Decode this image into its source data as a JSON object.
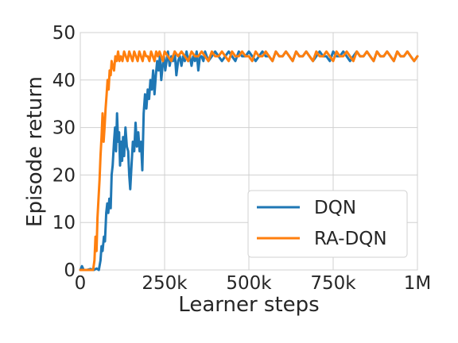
{
  "chart_data": {
    "type": "line",
    "xlabel": "Learner steps",
    "ylabel": "Episode return",
    "xlim": [
      0,
      1000000
    ],
    "ylim": [
      0,
      50
    ],
    "grid": true,
    "legend_position": "lower-right",
    "x_ticks": [
      {
        "value": 0,
        "label": "0"
      },
      {
        "value": 250000,
        "label": "250k"
      },
      {
        "value": 500000,
        "label": "500k"
      },
      {
        "value": 750000,
        "label": "750k"
      },
      {
        "value": 1000000,
        "label": "1M"
      }
    ],
    "y_ticks": [
      {
        "value": 0,
        "label": "0"
      },
      {
        "value": 10,
        "label": "10"
      },
      {
        "value": 20,
        "label": "20"
      },
      {
        "value": 30,
        "label": "30"
      },
      {
        "value": 40,
        "label": "40"
      },
      {
        "value": 50,
        "label": "50"
      }
    ],
    "series": [
      {
        "name": "DQN",
        "color": "#1f77b4",
        "points": [
          [
            0,
            0
          ],
          [
            5000,
            0.8
          ],
          [
            10000,
            0
          ],
          [
            20000,
            0
          ],
          [
            30000,
            0.2
          ],
          [
            40000,
            0
          ],
          [
            48000,
            0.3
          ],
          [
            55000,
            0
          ],
          [
            60000,
            2
          ],
          [
            63000,
            5
          ],
          [
            66000,
            4
          ],
          [
            70000,
            7
          ],
          [
            73000,
            6
          ],
          [
            77000,
            12
          ],
          [
            80000,
            14
          ],
          [
            83000,
            12
          ],
          [
            86000,
            15
          ],
          [
            90000,
            13
          ],
          [
            93000,
            20
          ],
          [
            96000,
            22
          ],
          [
            100000,
            27
          ],
          [
            103000,
            30
          ],
          [
            106000,
            25
          ],
          [
            109000,
            33
          ],
          [
            112000,
            27
          ],
          [
            115000,
            29
          ],
          [
            118000,
            22
          ],
          [
            121000,
            27
          ],
          [
            124000,
            23
          ],
          [
            127000,
            28
          ],
          [
            130000,
            24
          ],
          [
            134000,
            30
          ],
          [
            138000,
            26
          ],
          [
            142000,
            25
          ],
          [
            145000,
            20
          ],
          [
            148000,
            17
          ],
          [
            152000,
            22
          ],
          [
            156000,
            27
          ],
          [
            160000,
            25
          ],
          [
            164000,
            31
          ],
          [
            168000,
            26
          ],
          [
            172000,
            29
          ],
          [
            176000,
            25
          ],
          [
            180000,
            27
          ],
          [
            184000,
            21
          ],
          [
            188000,
            33
          ],
          [
            192000,
            37
          ],
          [
            196000,
            34
          ],
          [
            200000,
            38
          ],
          [
            204000,
            36
          ],
          [
            208000,
            40
          ],
          [
            212000,
            38
          ],
          [
            216000,
            42
          ],
          [
            220000,
            37
          ],
          [
            224000,
            41
          ],
          [
            228000,
            44
          ],
          [
            232000,
            42
          ],
          [
            236000,
            45
          ],
          [
            240000,
            40
          ],
          [
            244000,
            43
          ],
          [
            248000,
            45
          ],
          [
            252000,
            42
          ],
          [
            256000,
            44
          ],
          [
            260000,
            46
          ],
          [
            265000,
            43
          ],
          [
            270000,
            45
          ],
          [
            275000,
            44
          ],
          [
            280000,
            46
          ],
          [
            285000,
            41
          ],
          [
            290000,
            44
          ],
          [
            295000,
            45
          ],
          [
            300000,
            43
          ],
          [
            305000,
            45
          ],
          [
            310000,
            44
          ],
          [
            315000,
            46
          ],
          [
            320000,
            44
          ],
          [
            325000,
            45
          ],
          [
            330000,
            43
          ],
          [
            335000,
            45
          ],
          [
            340000,
            44
          ],
          [
            345000,
            46
          ],
          [
            350000,
            42
          ],
          [
            355000,
            45
          ],
          [
            360000,
            45
          ],
          [
            365000,
            44
          ],
          [
            370000,
            46
          ],
          [
            375000,
            45
          ],
          [
            380000,
            44
          ],
          [
            390000,
            45
          ],
          [
            400000,
            46
          ],
          [
            410000,
            45
          ],
          [
            420000,
            44
          ],
          [
            430000,
            45
          ],
          [
            440000,
            46
          ],
          [
            450000,
            45
          ],
          [
            460000,
            44
          ],
          [
            470000,
            46
          ],
          [
            480000,
            45
          ],
          [
            490000,
            45
          ],
          [
            500000,
            46
          ],
          [
            510000,
            45
          ],
          [
            520000,
            44
          ],
          [
            530000,
            45
          ],
          [
            540000,
            46
          ],
          [
            550000,
            45
          ],
          [
            560000,
            45
          ],
          [
            570000,
            44
          ],
          [
            580000,
            46
          ],
          [
            590000,
            45
          ],
          [
            600000,
            45
          ],
          [
            610000,
            46
          ],
          [
            620000,
            45
          ],
          [
            630000,
            44
          ],
          [
            640000,
            46
          ],
          [
            650000,
            45
          ],
          [
            660000,
            45
          ],
          [
            670000,
            46
          ],
          [
            680000,
            45
          ],
          [
            690000,
            44
          ],
          [
            700000,
            45
          ],
          [
            710000,
            46
          ],
          [
            720000,
            45
          ],
          [
            730000,
            45
          ],
          [
            740000,
            44
          ],
          [
            750000,
            46
          ],
          [
            760000,
            45
          ],
          [
            770000,
            45
          ],
          [
            780000,
            46
          ],
          [
            790000,
            45
          ],
          [
            800000,
            44
          ],
          [
            810000,
            45
          ],
          [
            820000,
            46
          ],
          [
            830000,
            45
          ],
          [
            840000,
            45
          ],
          [
            850000,
            46
          ],
          [
            860000,
            45
          ],
          [
            870000,
            44
          ],
          [
            880000,
            46
          ],
          [
            890000,
            45
          ],
          [
            900000,
            45
          ],
          [
            910000,
            46
          ],
          [
            920000,
            45
          ],
          [
            930000,
            44
          ],
          [
            940000,
            46
          ],
          [
            950000,
            45
          ],
          [
            960000,
            45
          ],
          [
            970000,
            46
          ],
          [
            980000,
            45
          ],
          [
            990000,
            44
          ],
          [
            1000000,
            45
          ]
        ]
      },
      {
        "name": "RA-DQN",
        "color": "#ff7f0e",
        "points": [
          [
            0,
            0
          ],
          [
            10000,
            0
          ],
          [
            20000,
            0
          ],
          [
            30000,
            0
          ],
          [
            38000,
            0
          ],
          [
            42000,
            2
          ],
          [
            45000,
            7
          ],
          [
            48000,
            4
          ],
          [
            51000,
            11
          ],
          [
            54000,
            15
          ],
          [
            57000,
            19
          ],
          [
            60000,
            24
          ],
          [
            63000,
            28
          ],
          [
            66000,
            33
          ],
          [
            69000,
            27
          ],
          [
            72000,
            30
          ],
          [
            75000,
            34
          ],
          [
            78000,
            37
          ],
          [
            81000,
            40
          ],
          [
            84000,
            38
          ],
          [
            87000,
            42
          ],
          [
            90000,
            41
          ],
          [
            93000,
            44
          ],
          [
            96000,
            43
          ],
          [
            100000,
            42
          ],
          [
            104000,
            45
          ],
          [
            108000,
            44
          ],
          [
            112000,
            46
          ],
          [
            116000,
            44
          ],
          [
            120000,
            45
          ],
          [
            125000,
            44
          ],
          [
            130000,
            46
          ],
          [
            135000,
            45
          ],
          [
            140000,
            44
          ],
          [
            145000,
            46
          ],
          [
            150000,
            45
          ],
          [
            155000,
            44
          ],
          [
            160000,
            46
          ],
          [
            165000,
            45
          ],
          [
            170000,
            44
          ],
          [
            175000,
            46
          ],
          [
            180000,
            45
          ],
          [
            185000,
            44
          ],
          [
            190000,
            46
          ],
          [
            195000,
            45
          ],
          [
            200000,
            45
          ],
          [
            205000,
            44
          ],
          [
            210000,
            46
          ],
          [
            215000,
            45
          ],
          [
            220000,
            44
          ],
          [
            225000,
            46
          ],
          [
            230000,
            45
          ],
          [
            235000,
            46
          ],
          [
            240000,
            45
          ],
          [
            245000,
            44
          ],
          [
            250000,
            46
          ],
          [
            260000,
            45
          ],
          [
            270000,
            44
          ],
          [
            280000,
            46
          ],
          [
            290000,
            45
          ],
          [
            300000,
            46
          ],
          [
            310000,
            45
          ],
          [
            320000,
            44
          ],
          [
            330000,
            46
          ],
          [
            340000,
            45
          ],
          [
            350000,
            45
          ],
          [
            360000,
            46
          ],
          [
            370000,
            45
          ],
          [
            380000,
            44
          ],
          [
            390000,
            46
          ],
          [
            400000,
            45
          ],
          [
            410000,
            45
          ],
          [
            420000,
            46
          ],
          [
            430000,
            45
          ],
          [
            440000,
            44
          ],
          [
            450000,
            46
          ],
          [
            460000,
            45
          ],
          [
            470000,
            45
          ],
          [
            480000,
            46
          ],
          [
            490000,
            45
          ],
          [
            500000,
            45
          ],
          [
            510000,
            44
          ],
          [
            520000,
            46
          ],
          [
            530000,
            45
          ],
          [
            540000,
            45
          ],
          [
            550000,
            46
          ],
          [
            560000,
            45
          ],
          [
            570000,
            44
          ],
          [
            580000,
            46
          ],
          [
            590000,
            45
          ],
          [
            600000,
            45
          ],
          [
            610000,
            46
          ],
          [
            620000,
            45
          ],
          [
            630000,
            44
          ],
          [
            640000,
            46
          ],
          [
            650000,
            45
          ],
          [
            660000,
            45
          ],
          [
            670000,
            46
          ],
          [
            680000,
            45
          ],
          [
            690000,
            44
          ],
          [
            700000,
            46
          ],
          [
            710000,
            45
          ],
          [
            720000,
            45
          ],
          [
            730000,
            46
          ],
          [
            740000,
            45
          ],
          [
            750000,
            44
          ],
          [
            760000,
            46
          ],
          [
            770000,
            45
          ],
          [
            780000,
            45
          ],
          [
            790000,
            46
          ],
          [
            800000,
            45
          ],
          [
            810000,
            44
          ],
          [
            820000,
            46
          ],
          [
            830000,
            45
          ],
          [
            840000,
            45
          ],
          [
            850000,
            46
          ],
          [
            860000,
            45
          ],
          [
            870000,
            44
          ],
          [
            880000,
            46
          ],
          [
            890000,
            45
          ],
          [
            900000,
            45
          ],
          [
            910000,
            46
          ],
          [
            920000,
            45
          ],
          [
            930000,
            44
          ],
          [
            940000,
            46
          ],
          [
            950000,
            45
          ],
          [
            960000,
            45
          ],
          [
            970000,
            46
          ],
          [
            980000,
            45
          ],
          [
            990000,
            44
          ],
          [
            1000000,
            45
          ]
        ]
      }
    ]
  }
}
